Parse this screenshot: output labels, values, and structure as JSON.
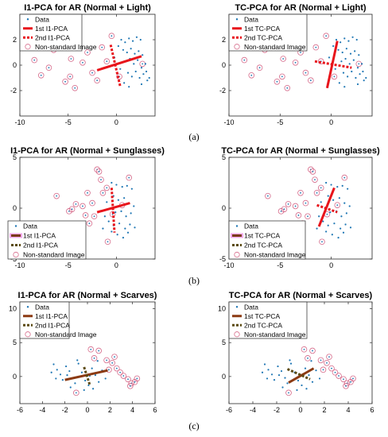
{
  "sublabels": [
    "(a)",
    "(b)",
    "(c)"
  ],
  "chart_data": [
    {
      "type": "scatter",
      "title": "I1-PCA for AR (Normal + Light)",
      "xlim": [
        -10,
        4
      ],
      "ylim": [
        -4,
        4
      ],
      "xticks": [
        -10,
        -5,
        0
      ],
      "yticks": [
        -2,
        0,
        2
      ],
      "grid": false,
      "legend_position": "top-left",
      "legend": [
        "Data",
        "1st I1-PCA",
        "2nd I1-PCA",
        "Non-standard Image"
      ],
      "data_points": [
        [
          0.5,
          2.0
        ],
        [
          0.9,
          1.8
        ],
        [
          1.3,
          2.1
        ],
        [
          1.7,
          1.9
        ],
        [
          2.1,
          2.2
        ],
        [
          2.5,
          2.0
        ],
        [
          0.7,
          1.2
        ],
        [
          1.1,
          1.0
        ],
        [
          1.5,
          1.3
        ],
        [
          1.9,
          0.9
        ],
        [
          2.3,
          1.1
        ],
        [
          2.7,
          0.8
        ],
        [
          1.0,
          0.3
        ],
        [
          1.4,
          0.5
        ],
        [
          1.8,
          0.1
        ],
        [
          2.2,
          0.4
        ],
        [
          2.6,
          -0.2
        ],
        [
          3.0,
          0.1
        ],
        [
          1.2,
          -0.6
        ],
        [
          1.6,
          -0.9
        ],
        [
          2.0,
          -0.5
        ],
        [
          2.4,
          -1.0
        ],
        [
          2.8,
          -0.7
        ],
        [
          3.2,
          -1.2
        ],
        [
          0.4,
          -0.3
        ],
        [
          0.8,
          -1.4
        ],
        [
          1.3,
          -1.7
        ],
        [
          2.6,
          -1.5
        ],
        [
          3.1,
          -0.5
        ],
        [
          3.4,
          -1.0
        ],
        [
          -0.2,
          0.6
        ],
        [
          0.2,
          1.5
        ]
      ],
      "nonstandard_points": [
        [
          -8.5,
          0.4
        ],
        [
          -7.8,
          -0.8
        ],
        [
          -6.5,
          1.2
        ],
        [
          -6.0,
          2.8
        ],
        [
          -5.6,
          3.1
        ],
        [
          -5.3,
          -1.3
        ],
        [
          -4.8,
          -0.9
        ],
        [
          -4.3,
          -1.8
        ],
        [
          -4.0,
          2.5
        ],
        [
          -3.5,
          0.2
        ],
        [
          -3.0,
          1.0
        ],
        [
          -2.5,
          -0.6
        ],
        [
          -2.0,
          -1.2
        ],
        [
          -1.5,
          1.4
        ],
        [
          -1.0,
          0.3
        ],
        [
          -0.5,
          2.3
        ],
        [
          0.3,
          -0.9
        ],
        [
          -7.0,
          -0.2
        ],
        [
          -4.7,
          0.5
        ],
        [
          2.7,
          0.1
        ]
      ],
      "pc1": {
        "from": [
          -2.0,
          -0.4
        ],
        "to": [
          2.6,
          0.7
        ]
      },
      "pc2": {
        "from": [
          -0.6,
          1.6
        ],
        "to": [
          0.4,
          -1.7
        ]
      }
    },
    {
      "type": "scatter",
      "title": "TC-PCA for AR (Normal + Light)",
      "xlim": [
        -10,
        4
      ],
      "ylim": [
        -4,
        4
      ],
      "xticks": [
        -10,
        -5,
        0
      ],
      "yticks": [
        -2,
        0,
        2
      ],
      "grid": false,
      "legend_position": "top-left",
      "legend": [
        "Data",
        "1st TC-PCA",
        "2nd TC-PCA",
        "Non-standard Image"
      ],
      "data_points": [
        [
          0.5,
          2.0
        ],
        [
          0.9,
          1.8
        ],
        [
          1.3,
          2.1
        ],
        [
          1.7,
          1.9
        ],
        [
          2.1,
          2.2
        ],
        [
          2.5,
          2.0
        ],
        [
          0.7,
          1.2
        ],
        [
          1.1,
          1.0
        ],
        [
          1.5,
          1.3
        ],
        [
          1.9,
          0.9
        ],
        [
          2.3,
          1.1
        ],
        [
          2.7,
          0.8
        ],
        [
          1.0,
          0.3
        ],
        [
          1.4,
          0.5
        ],
        [
          1.8,
          0.1
        ],
        [
          2.2,
          0.4
        ],
        [
          2.6,
          -0.2
        ],
        [
          3.0,
          0.1
        ],
        [
          1.2,
          -0.6
        ],
        [
          1.6,
          -0.9
        ],
        [
          2.0,
          -0.5
        ],
        [
          2.4,
          -1.0
        ],
        [
          2.8,
          -0.7
        ],
        [
          3.2,
          -1.2
        ],
        [
          0.4,
          -0.3
        ],
        [
          0.8,
          -1.4
        ],
        [
          1.3,
          -1.7
        ],
        [
          2.6,
          -1.5
        ],
        [
          3.1,
          -0.5
        ],
        [
          3.4,
          -1.0
        ],
        [
          -0.2,
          0.6
        ],
        [
          0.2,
          1.5
        ]
      ],
      "nonstandard_points": [
        [
          -8.5,
          0.4
        ],
        [
          -7.8,
          -0.8
        ],
        [
          -6.5,
          1.2
        ],
        [
          -6.0,
          2.8
        ],
        [
          -5.6,
          3.1
        ],
        [
          -5.3,
          -1.3
        ],
        [
          -4.8,
          -0.9
        ],
        [
          -4.3,
          -1.8
        ],
        [
          -4.0,
          2.5
        ],
        [
          -3.5,
          0.2
        ],
        [
          -3.0,
          1.0
        ],
        [
          -2.5,
          -0.6
        ],
        [
          -2.0,
          -1.2
        ],
        [
          -1.5,
          1.4
        ],
        [
          -1.0,
          0.3
        ],
        [
          -0.5,
          2.3
        ],
        [
          0.3,
          -0.9
        ],
        [
          -7.0,
          -0.2
        ],
        [
          -4.7,
          0.5
        ],
        [
          2.7,
          0.1
        ]
      ],
      "pc1": {
        "from": [
          -0.4,
          -1.8
        ],
        "to": [
          0.6,
          1.9
        ]
      },
      "pc2": {
        "from": [
          -1.6,
          0.3
        ],
        "to": [
          2.0,
          -0.2
        ]
      }
    },
    {
      "type": "scatter",
      "title": "I1-PCA for AR (Normal + Sunglasses)",
      "xlim": [
        -10,
        4
      ],
      "ylim": [
        -5,
        5
      ],
      "xticks": [
        -10,
        -5,
        0
      ],
      "yticks": [
        -5,
        0,
        5
      ],
      "grid": false,
      "legend_position": "bottom-left",
      "legend": [
        "Data",
        "1st I1-PCA",
        "2nd I1-PCA",
        "Non-standard Image"
      ],
      "data_points": [
        [
          -0.5,
          2.5
        ],
        [
          0.0,
          2.3
        ],
        [
          0.6,
          2.1
        ],
        [
          1.1,
          2.2
        ],
        [
          1.6,
          1.9
        ],
        [
          -0.3,
          1.2
        ],
        [
          0.2,
          0.8
        ],
        [
          0.8,
          1.0
        ],
        [
          1.3,
          0.5
        ],
        [
          -0.6,
          0.0
        ],
        [
          -0.1,
          -0.4
        ],
        [
          0.5,
          -0.3
        ],
        [
          1.0,
          -0.8
        ],
        [
          1.5,
          -0.5
        ],
        [
          -0.8,
          -1.3
        ],
        [
          -0.3,
          -1.7
        ],
        [
          0.3,
          -1.5
        ],
        [
          0.9,
          -2.0
        ],
        [
          1.4,
          -1.6
        ],
        [
          1.9,
          -1.9
        ],
        [
          -0.5,
          -2.3
        ],
        [
          0.1,
          -2.6
        ],
        [
          0.7,
          -2.9
        ],
        [
          1.2,
          -2.4
        ],
        [
          -1.2,
          -0.8
        ],
        [
          -1.0,
          0.6
        ],
        [
          1.8,
          0.2
        ],
        [
          -1.4,
          -2.0
        ]
      ],
      "nonstandard_points": [
        [
          -6.2,
          1.2
        ],
        [
          -4.9,
          -0.3
        ],
        [
          -4.6,
          -0.1
        ],
        [
          -4.2,
          0.4
        ],
        [
          -3.5,
          0.2
        ],
        [
          -3.0,
          1.5
        ],
        [
          -2.8,
          -1.5
        ],
        [
          -2.5,
          0.5
        ],
        [
          -2.0,
          3.8
        ],
        [
          -1.8,
          3.6
        ],
        [
          -1.6,
          2.8
        ],
        [
          -1.4,
          1.5
        ],
        [
          -0.9,
          -3.3
        ],
        [
          -2.3,
          -0.8
        ],
        [
          -0.4,
          -0.6
        ],
        [
          -1.0,
          2.0
        ],
        [
          1.3,
          3.0
        ],
        [
          0.6,
          0.3
        ],
        [
          -3.8,
          -2.1
        ],
        [
          -3.2,
          -0.7
        ]
      ],
      "pc1": {
        "from": [
          -2.0,
          -0.4
        ],
        "to": [
          1.4,
          0.5
        ]
      },
      "pc2": {
        "from": [
          -0.5,
          2.0
        ],
        "to": [
          -0.2,
          -2.4
        ]
      }
    },
    {
      "type": "scatter",
      "title": "TC-PCA for AR (Normal + Sunglasses)",
      "xlim": [
        -10,
        4
      ],
      "ylim": [
        -5,
        5
      ],
      "xticks": [
        -10,
        -5,
        0
      ],
      "yticks": [
        -5,
        0,
        5
      ],
      "grid": false,
      "legend_position": "bottom-left",
      "legend": [
        "Data",
        "1st TC-PCA",
        "2nd TC-PCA",
        "Non-standard Image"
      ],
      "data_points": [
        [
          -0.5,
          2.5
        ],
        [
          0.0,
          2.3
        ],
        [
          0.6,
          2.1
        ],
        [
          1.1,
          2.2
        ],
        [
          1.6,
          1.9
        ],
        [
          -0.3,
          1.2
        ],
        [
          0.2,
          0.8
        ],
        [
          0.8,
          1.0
        ],
        [
          1.3,
          0.5
        ],
        [
          -0.6,
          0.0
        ],
        [
          -0.1,
          -0.4
        ],
        [
          0.5,
          -0.3
        ],
        [
          1.0,
          -0.8
        ],
        [
          1.5,
          -0.5
        ],
        [
          -0.8,
          -1.3
        ],
        [
          -0.3,
          -1.7
        ],
        [
          0.3,
          -1.5
        ],
        [
          0.9,
          -2.0
        ],
        [
          1.4,
          -1.6
        ],
        [
          1.9,
          -1.9
        ],
        [
          -0.5,
          -2.3
        ],
        [
          0.1,
          -2.6
        ],
        [
          0.7,
          -2.9
        ],
        [
          1.2,
          -2.4
        ],
        [
          -1.2,
          -0.8
        ],
        [
          -1.0,
          0.6
        ],
        [
          1.8,
          0.2
        ],
        [
          -1.4,
          -2.0
        ]
      ],
      "nonstandard_points": [
        [
          -6.2,
          1.2
        ],
        [
          -4.9,
          -0.3
        ],
        [
          -4.6,
          -0.1
        ],
        [
          -4.2,
          0.4
        ],
        [
          -3.5,
          0.2
        ],
        [
          -3.0,
          1.5
        ],
        [
          -2.8,
          -1.5
        ],
        [
          -2.5,
          0.5
        ],
        [
          -2.0,
          3.8
        ],
        [
          -1.8,
          3.6
        ],
        [
          -1.6,
          2.8
        ],
        [
          -1.4,
          1.5
        ],
        [
          -0.9,
          -3.3
        ],
        [
          -2.3,
          -0.8
        ],
        [
          -0.4,
          -0.6
        ],
        [
          -1.0,
          2.0
        ],
        [
          1.3,
          3.0
        ],
        [
          0.6,
          0.3
        ],
        [
          -3.8,
          -2.1
        ],
        [
          -3.2,
          -0.7
        ]
      ],
      "pc1": {
        "from": [
          -1.2,
          -1.8
        ],
        "to": [
          0.3,
          2.0
        ]
      },
      "pc2": {
        "from": [
          -1.4,
          0.3
        ],
        "to": [
          0.6,
          -0.4
        ]
      }
    },
    {
      "type": "scatter",
      "title": "I1-PCA for AR (Normal + Scarves)",
      "xlim": [
        -6,
        6
      ],
      "ylim": [
        -4,
        11
      ],
      "xticks": [
        -6,
        -4,
        -2,
        0,
        2,
        4,
        6
      ],
      "yticks": [
        0,
        5,
        10
      ],
      "grid": false,
      "legend_position": "top-left",
      "legend": [
        "Data",
        "1st I1-PCA",
        "2nd I1-PCA",
        "Non-standard Image"
      ],
      "data_points": [
        [
          -3.0,
          1.8
        ],
        [
          -2.7,
          1.0
        ],
        [
          -2.4,
          0.3
        ],
        [
          -2.2,
          -0.5
        ],
        [
          -1.9,
          1.5
        ],
        [
          -1.6,
          0.8
        ],
        [
          -1.3,
          -0.2
        ],
        [
          -1.1,
          -1.0
        ],
        [
          -0.8,
          1.9
        ],
        [
          -0.5,
          0.6
        ],
        [
          -0.2,
          -0.6
        ],
        [
          0.1,
          -1.3
        ],
        [
          0.4,
          1.2
        ],
        [
          0.7,
          0.2
        ],
        [
          1.0,
          -0.8
        ],
        [
          1.3,
          0.9
        ],
        [
          -2.8,
          -0.3
        ],
        [
          -1.5,
          -1.6
        ],
        [
          -0.3,
          -2.0
        ],
        [
          0.5,
          -1.8
        ],
        [
          -3.2,
          0.6
        ],
        [
          0.9,
          2.3
        ],
        [
          1.6,
          -0.3
        ],
        [
          -0.9,
          2.4
        ],
        [
          0.2,
          0.1
        ],
        [
          -1.8,
          0.2
        ]
      ],
      "nonstandard_points": [
        [
          0.3,
          4.0
        ],
        [
          1.0,
          3.8
        ],
        [
          0.6,
          2.7
        ],
        [
          1.7,
          2.4
        ],
        [
          2.2,
          2.0
        ],
        [
          2.6,
          1.2
        ],
        [
          2.9,
          0.6
        ],
        [
          3.2,
          0.1
        ],
        [
          3.6,
          -0.4
        ],
        [
          3.9,
          -1.0
        ],
        [
          4.2,
          -0.8
        ],
        [
          4.4,
          -0.3
        ],
        [
          3.8,
          -1.4
        ],
        [
          2.4,
          2.9
        ],
        [
          1.9,
          1.0
        ],
        [
          -1.0,
          -2.4
        ]
      ],
      "pc1": {
        "from": [
          -2.0,
          -0.5
        ],
        "to": [
          1.8,
          0.9
        ]
      },
      "pc2": {
        "from": [
          -0.3,
          1.4
        ],
        "to": [
          0.2,
          -1.2
        ]
      }
    },
    {
      "type": "scatter",
      "title": "TC-PCA for AR (Normal + Scarves)",
      "xlim": [
        -6,
        6
      ],
      "ylim": [
        -4,
        11
      ],
      "xticks": [
        -6,
        -4,
        -2,
        0,
        2,
        4,
        6
      ],
      "yticks": [
        0,
        5,
        10
      ],
      "grid": false,
      "legend_position": "top-left",
      "legend": [
        "Data",
        "1st TC-PCA",
        "2nd TC-PCA",
        "Non-standard Image"
      ],
      "data_points": [
        [
          -3.0,
          1.8
        ],
        [
          -2.7,
          1.0
        ],
        [
          -2.4,
          0.3
        ],
        [
          -2.2,
          -0.5
        ],
        [
          -1.9,
          1.5
        ],
        [
          -1.6,
          0.8
        ],
        [
          -1.3,
          -0.2
        ],
        [
          -1.1,
          -1.0
        ],
        [
          -0.8,
          1.9
        ],
        [
          -0.5,
          0.6
        ],
        [
          -0.2,
          -0.6
        ],
        [
          0.1,
          -1.3
        ],
        [
          0.4,
          1.2
        ],
        [
          0.7,
          0.2
        ],
        [
          1.0,
          -0.8
        ],
        [
          1.3,
          0.9
        ],
        [
          -2.8,
          -0.3
        ],
        [
          -1.5,
          -1.6
        ],
        [
          -0.3,
          -2.0
        ],
        [
          0.5,
          -1.8
        ],
        [
          -3.2,
          0.6
        ],
        [
          0.9,
          2.3
        ],
        [
          1.6,
          -0.3
        ],
        [
          -0.9,
          2.4
        ],
        [
          0.2,
          0.1
        ],
        [
          -1.8,
          0.2
        ]
      ],
      "nonstandard_points": [
        [
          0.3,
          4.0
        ],
        [
          1.0,
          3.8
        ],
        [
          0.6,
          2.7
        ],
        [
          1.7,
          2.4
        ],
        [
          2.2,
          2.0
        ],
        [
          2.6,
          1.2
        ],
        [
          2.9,
          0.6
        ],
        [
          3.2,
          0.1
        ],
        [
          3.6,
          -0.4
        ],
        [
          3.9,
          -1.0
        ],
        [
          4.2,
          -0.8
        ],
        [
          4.4,
          -0.3
        ],
        [
          3.8,
          -1.4
        ],
        [
          2.4,
          2.9
        ],
        [
          1.9,
          1.0
        ],
        [
          -1.0,
          -2.4
        ]
      ],
      "pc1": {
        "from": [
          -1.0,
          -0.9
        ],
        "to": [
          1.1,
          1.2
        ]
      },
      "pc2": {
        "from": [
          -1.1,
          1.1
        ],
        "to": [
          0.8,
          -0.4
        ]
      }
    }
  ],
  "colors": {
    "data": "#1f77b4",
    "pc1_light": "#e8141b",
    "pc2_light": "#e8141b",
    "pc1_sunglasses": "#e8141b",
    "pc2_sunglasses": "#e8141b",
    "legend_pc1_dark": "#7a3b10",
    "legend_pc2_dark": "#5a4a10",
    "pc1_scarves": "#8b3a12",
    "pc2_scarves": "#5c4a12",
    "nonstandard": "#d66a8a",
    "legend_highlight": "#f0a8ec"
  }
}
